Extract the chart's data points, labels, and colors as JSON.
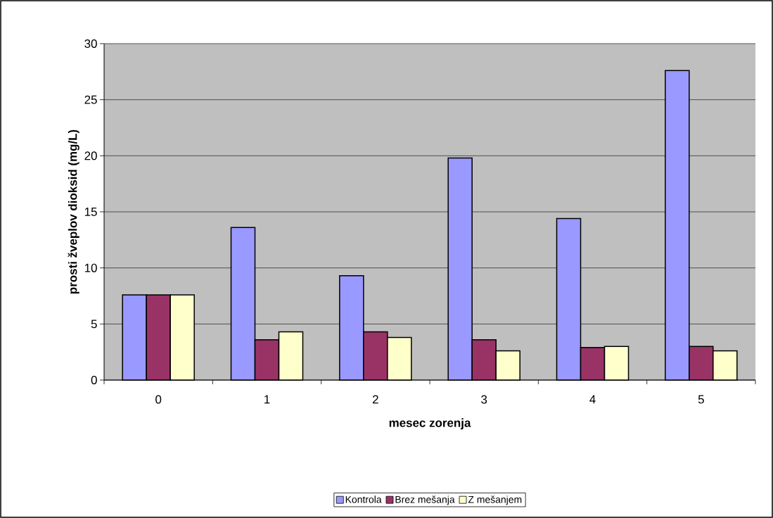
{
  "chart_data": {
    "type": "bar",
    "xlabel": "mesec zorenja",
    "ylabel": "prosti žveplov dioksid (mg/L)",
    "categories": [
      "0",
      "1",
      "2",
      "3",
      "4",
      "5"
    ],
    "series": [
      {
        "name": "Kontrola",
        "color": "#9999ff",
        "values": [
          7.6,
          13.6,
          9.3,
          19.8,
          14.4,
          27.6
        ]
      },
      {
        "name": "Brez mešanja",
        "color": "#993366",
        "values": [
          7.6,
          3.6,
          4.3,
          3.6,
          2.9,
          3.0
        ]
      },
      {
        "name": "Z mešanjem",
        "color": "#ffffcc",
        "values": [
          7.6,
          4.3,
          3.8,
          2.6,
          3.0,
          2.6
        ]
      }
    ],
    "ylim": [
      0,
      30
    ],
    "yticks": [
      0,
      5,
      10,
      15,
      20,
      25,
      30
    ],
    "grid": "y",
    "legend": "bottom"
  }
}
